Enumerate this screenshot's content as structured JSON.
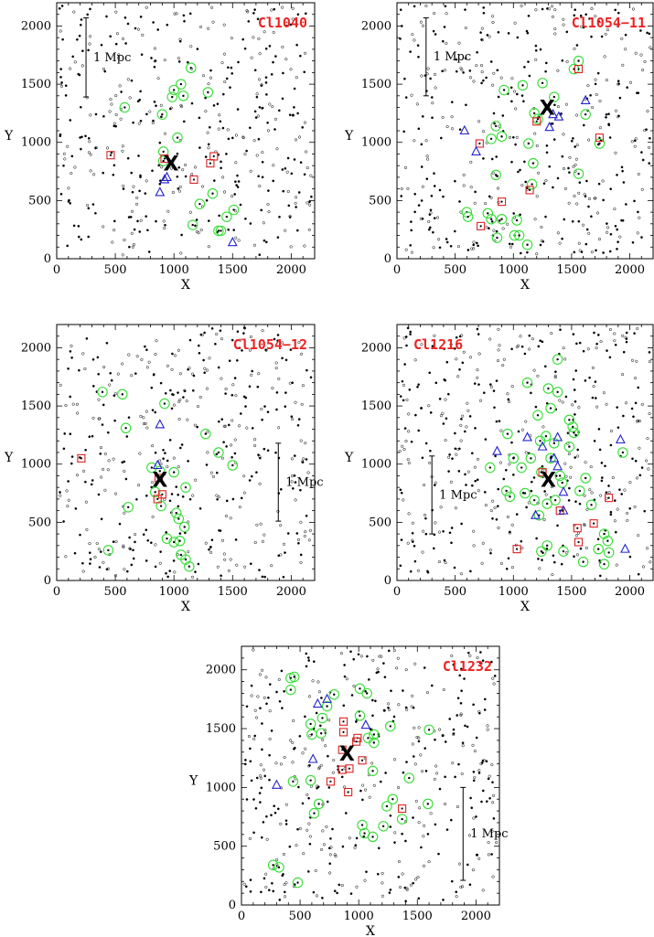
{
  "chart_data": [
    {
      "type": "scatter",
      "title": "Cl1040",
      "xlabel": "X",
      "ylabel": "Y",
      "xlim": [
        0,
        2200
      ],
      "ylim": [
        0,
        2200
      ],
      "xticks": [
        "0",
        "500",
        "1000",
        "1500",
        "2000"
      ],
      "yticks": [
        "0",
        "500",
        "1000",
        "1500",
        "2000"
      ],
      "title_position": "top-right",
      "scalebar": {
        "label": "1 Mpc",
        "x": 250,
        "y0": 1390,
        "y1": 2070
      },
      "center": {
        "x": 975,
        "y": 820,
        "label": "X"
      },
      "circles": [
        [
          1145,
          1640
        ],
        [
          1060,
          1500
        ],
        [
          1080,
          1400
        ],
        [
          1000,
          1450
        ],
        [
          985,
          1390
        ],
        [
          1290,
          1430
        ],
        [
          580,
          1300
        ],
        [
          900,
          1240
        ],
        [
          1030,
          1040
        ],
        [
          910,
          920
        ],
        [
          910,
          840
        ],
        [
          1220,
          470
        ],
        [
          1330,
          560
        ],
        [
          1160,
          290
        ],
        [
          1510,
          420
        ],
        [
          1450,
          360
        ],
        [
          1400,
          240
        ],
        [
          1380,
          240
        ]
      ],
      "squares": [
        [
          460,
          890
        ],
        [
          920,
          860
        ],
        [
          1340,
          880
        ],
        [
          1310,
          820
        ],
        [
          1170,
          680
        ]
      ],
      "triangles": [
        [
          940,
          700
        ],
        [
          920,
          680
        ],
        [
          880,
          570
        ],
        [
          1500,
          140
        ]
      ]
    },
    {
      "type": "scatter",
      "title": "Cl1054−11",
      "xlabel": "X",
      "ylabel": "Y",
      "xlim": [
        0,
        2200
      ],
      "ylim": [
        0,
        2200
      ],
      "xticks": [
        "0",
        "500",
        "1000",
        "1500",
        "2000"
      ],
      "yticks": [
        "0",
        "500",
        "1000",
        "1500",
        "2000"
      ],
      "title_position": "top-right",
      "scalebar": {
        "label": "1 Mpc",
        "x": 250,
        "y0": 1400,
        "y1": 2070
      },
      "center": {
        "x": 1290,
        "y": 1300,
        "label": "X"
      },
      "circles": [
        [
          1560,
          1700
        ],
        [
          1520,
          1630
        ],
        [
          1250,
          1510
        ],
        [
          1080,
          1490
        ],
        [
          1350,
          1390
        ],
        [
          1180,
          1250
        ],
        [
          1210,
          1200
        ],
        [
          920,
          1450
        ],
        [
          1620,
          1240
        ],
        [
          850,
          1140
        ],
        [
          900,
          1050
        ],
        [
          810,
          1030
        ],
        [
          1130,
          990
        ],
        [
          1170,
          820
        ],
        [
          850,
          720
        ],
        [
          1740,
          990
        ],
        [
          1560,
          730
        ],
        [
          1160,
          640
        ],
        [
          600,
          400
        ],
        [
          610,
          360
        ],
        [
          780,
          390
        ],
        [
          810,
          340
        ],
        [
          900,
          340
        ],
        [
          1030,
          330
        ],
        [
          1010,
          200
        ],
        [
          1050,
          200
        ],
        [
          860,
          180
        ],
        [
          1120,
          120
        ]
      ],
      "squares": [
        [
          1560,
          1630
        ],
        [
          1200,
          1180
        ],
        [
          710,
          990
        ],
        [
          900,
          490
        ],
        [
          1140,
          590
        ],
        [
          1740,
          1040
        ],
        [
          720,
          280
        ]
      ],
      "triangles": [
        [
          1340,
          1240
        ],
        [
          1390,
          1220
        ],
        [
          1620,
          1360
        ],
        [
          1310,
          1130
        ],
        [
          680,
          920
        ],
        [
          580,
          1100
        ]
      ]
    },
    {
      "type": "scatter",
      "title": "Cl1054−12",
      "xlabel": "X",
      "ylabel": "Y",
      "xlim": [
        0,
        2200
      ],
      "ylim": [
        0,
        2200
      ],
      "xticks": [
        "0",
        "500",
        "1000",
        "1500",
        "2000"
      ],
      "yticks": [
        "0",
        "500",
        "1000",
        "1500",
        "2000"
      ],
      "title_position": "top-right",
      "scalebar": {
        "label": "1 Mpc",
        "x": 1890,
        "y0": 510,
        "y1": 1180
      },
      "center": {
        "x": 880,
        "y": 870,
        "label": "X"
      },
      "circles": [
        [
          390,
          1620
        ],
        [
          560,
          1600
        ],
        [
          920,
          1520
        ],
        [
          590,
          1310
        ],
        [
          1270,
          1260
        ],
        [
          1380,
          1100
        ],
        [
          1500,
          990
        ],
        [
          810,
          970
        ],
        [
          880,
          940
        ],
        [
          1000,
          930
        ],
        [
          1100,
          800
        ],
        [
          840,
          760
        ],
        [
          610,
          630
        ],
        [
          890,
          640
        ],
        [
          1020,
          580
        ],
        [
          1040,
          530
        ],
        [
          1090,
          460
        ],
        [
          940,
          360
        ],
        [
          1000,
          330
        ],
        [
          1050,
          340
        ],
        [
          1060,
          220
        ],
        [
          1100,
          180
        ],
        [
          1130,
          120
        ],
        [
          440,
          260
        ]
      ],
      "squares": [
        [
          210,
          1050
        ],
        [
          870,
          880
        ],
        [
          900,
          740
        ],
        [
          860,
          700
        ]
      ],
      "triangles": [
        [
          880,
          1340
        ],
        [
          860,
          990
        ]
      ]
    },
    {
      "type": "scatter",
      "title": "Cl1216",
      "xlabel": "X",
      "ylabel": "Y",
      "xlim": [
        0,
        2200
      ],
      "ylim": [
        0,
        2200
      ],
      "xticks": [
        "0",
        "500",
        "1000",
        "1500",
        "2000"
      ],
      "yticks": [
        "0",
        "500",
        "1000",
        "1500",
        "2000"
      ],
      "title_position": "top-left",
      "scalebar": {
        "label": "1 Mpc",
        "x": 300,
        "y0": 400,
        "y1": 1070
      },
      "center": {
        "x": 1300,
        "y": 870,
        "label": "X"
      },
      "circles": [
        [
          1380,
          1900
        ],
        [
          1120,
          1700
        ],
        [
          1300,
          1650
        ],
        [
          1380,
          1620
        ],
        [
          1320,
          1480
        ],
        [
          1210,
          1420
        ],
        [
          1280,
          1240
        ],
        [
          1480,
          1380
        ],
        [
          1510,
          1320
        ],
        [
          1520,
          1270
        ],
        [
          950,
          1260
        ],
        [
          1230,
          1200
        ],
        [
          1350,
          1180
        ],
        [
          1480,
          1150
        ],
        [
          1320,
          1050
        ],
        [
          1940,
          1100
        ],
        [
          1150,
          1050
        ],
        [
          1000,
          1050
        ],
        [
          1070,
          970
        ],
        [
          800,
          970
        ],
        [
          1240,
          930
        ],
        [
          1400,
          900
        ],
        [
          1620,
          880
        ],
        [
          1420,
          840
        ],
        [
          1570,
          770
        ],
        [
          940,
          770
        ],
        [
          970,
          720
        ],
        [
          1100,
          750
        ],
        [
          1360,
          690
        ],
        [
          1180,
          690
        ],
        [
          1290,
          660
        ],
        [
          1670,
          650
        ],
        [
          1220,
          560
        ],
        [
          1780,
          400
        ],
        [
          1810,
          340
        ],
        [
          1290,
          300
        ],
        [
          1430,
          250
        ],
        [
          1240,
          250
        ],
        [
          1600,
          160
        ],
        [
          1780,
          140
        ],
        [
          1820,
          240
        ],
        [
          1730,
          270
        ]
      ],
      "squares": [
        [
          1250,
          930
        ],
        [
          1400,
          600
        ],
        [
          1550,
          450
        ],
        [
          1690,
          490
        ],
        [
          1820,
          710
        ],
        [
          1030,
          270
        ],
        [
          1560,
          330
        ]
      ],
      "triangles": [
        [
          1920,
          1210
        ],
        [
          1380,
          1230
        ],
        [
          1120,
          1230
        ],
        [
          1250,
          1150
        ],
        [
          860,
          1110
        ],
        [
          1350,
          1050
        ],
        [
          1380,
          980
        ],
        [
          1430,
          760
        ],
        [
          1430,
          600
        ],
        [
          1190,
          560
        ],
        [
          1960,
          270
        ]
      ]
    },
    {
      "type": "scatter",
      "title": "Cl1232",
      "xlabel": "X",
      "ylabel": "Y",
      "xlim": [
        0,
        2200
      ],
      "ylim": [
        0,
        2200
      ],
      "xticks": [
        "0",
        "500",
        "1000",
        "1500",
        "2000"
      ],
      "yticks": [
        "0",
        "500",
        "1000",
        "1500",
        "2000"
      ],
      "title_position": "top-right",
      "scalebar": {
        "label": "1 Mpc",
        "x": 1890,
        "y0": 210,
        "y1": 1000
      },
      "center": {
        "x": 900,
        "y": 1290,
        "label": "X"
      },
      "circles": [
        [
          420,
          1930
        ],
        [
          450,
          1940
        ],
        [
          420,
          1830
        ],
        [
          1010,
          1840
        ],
        [
          1070,
          1800
        ],
        [
          790,
          1790
        ],
        [
          730,
          1690
        ],
        [
          1010,
          1610
        ],
        [
          690,
          1590
        ],
        [
          590,
          1540
        ],
        [
          600,
          1450
        ],
        [
          680,
          1460
        ],
        [
          1270,
          1520
        ],
        [
          1130,
          1450
        ],
        [
          1080,
          1420
        ],
        [
          1130,
          1380
        ],
        [
          1600,
          1490
        ],
        [
          440,
          1050
        ],
        [
          590,
          1060
        ],
        [
          1120,
          1140
        ],
        [
          1430,
          1080
        ],
        [
          1290,
          900
        ],
        [
          1240,
          840
        ],
        [
          1590,
          860
        ],
        [
          660,
          860
        ],
        [
          620,
          780
        ],
        [
          1030,
          680
        ],
        [
          1050,
          610
        ],
        [
          1120,
          580
        ],
        [
          1210,
          670
        ],
        [
          1370,
          730
        ],
        [
          270,
          340
        ],
        [
          320,
          320
        ],
        [
          480,
          190
        ]
      ],
      "squares": [
        [
          870,
          1560
        ],
        [
          870,
          1470
        ],
        [
          990,
          1420
        ],
        [
          980,
          1390
        ],
        [
          860,
          1320
        ],
        [
          1030,
          1230
        ],
        [
          920,
          1160
        ],
        [
          860,
          1150
        ],
        [
          760,
          1050
        ],
        [
          910,
          960
        ],
        [
          1370,
          820
        ]
      ],
      "triangles": [
        [
          650,
          1710
        ],
        [
          730,
          1750
        ],
        [
          1060,
          1530
        ],
        [
          610,
          1240
        ],
        [
          300,
          1020
        ]
      ]
    }
  ],
  "colors": {
    "circle": "#33dd33",
    "square": "#dd2222",
    "triangle": "#2222cc",
    "title": "#ee2222",
    "ink": "#000000"
  }
}
